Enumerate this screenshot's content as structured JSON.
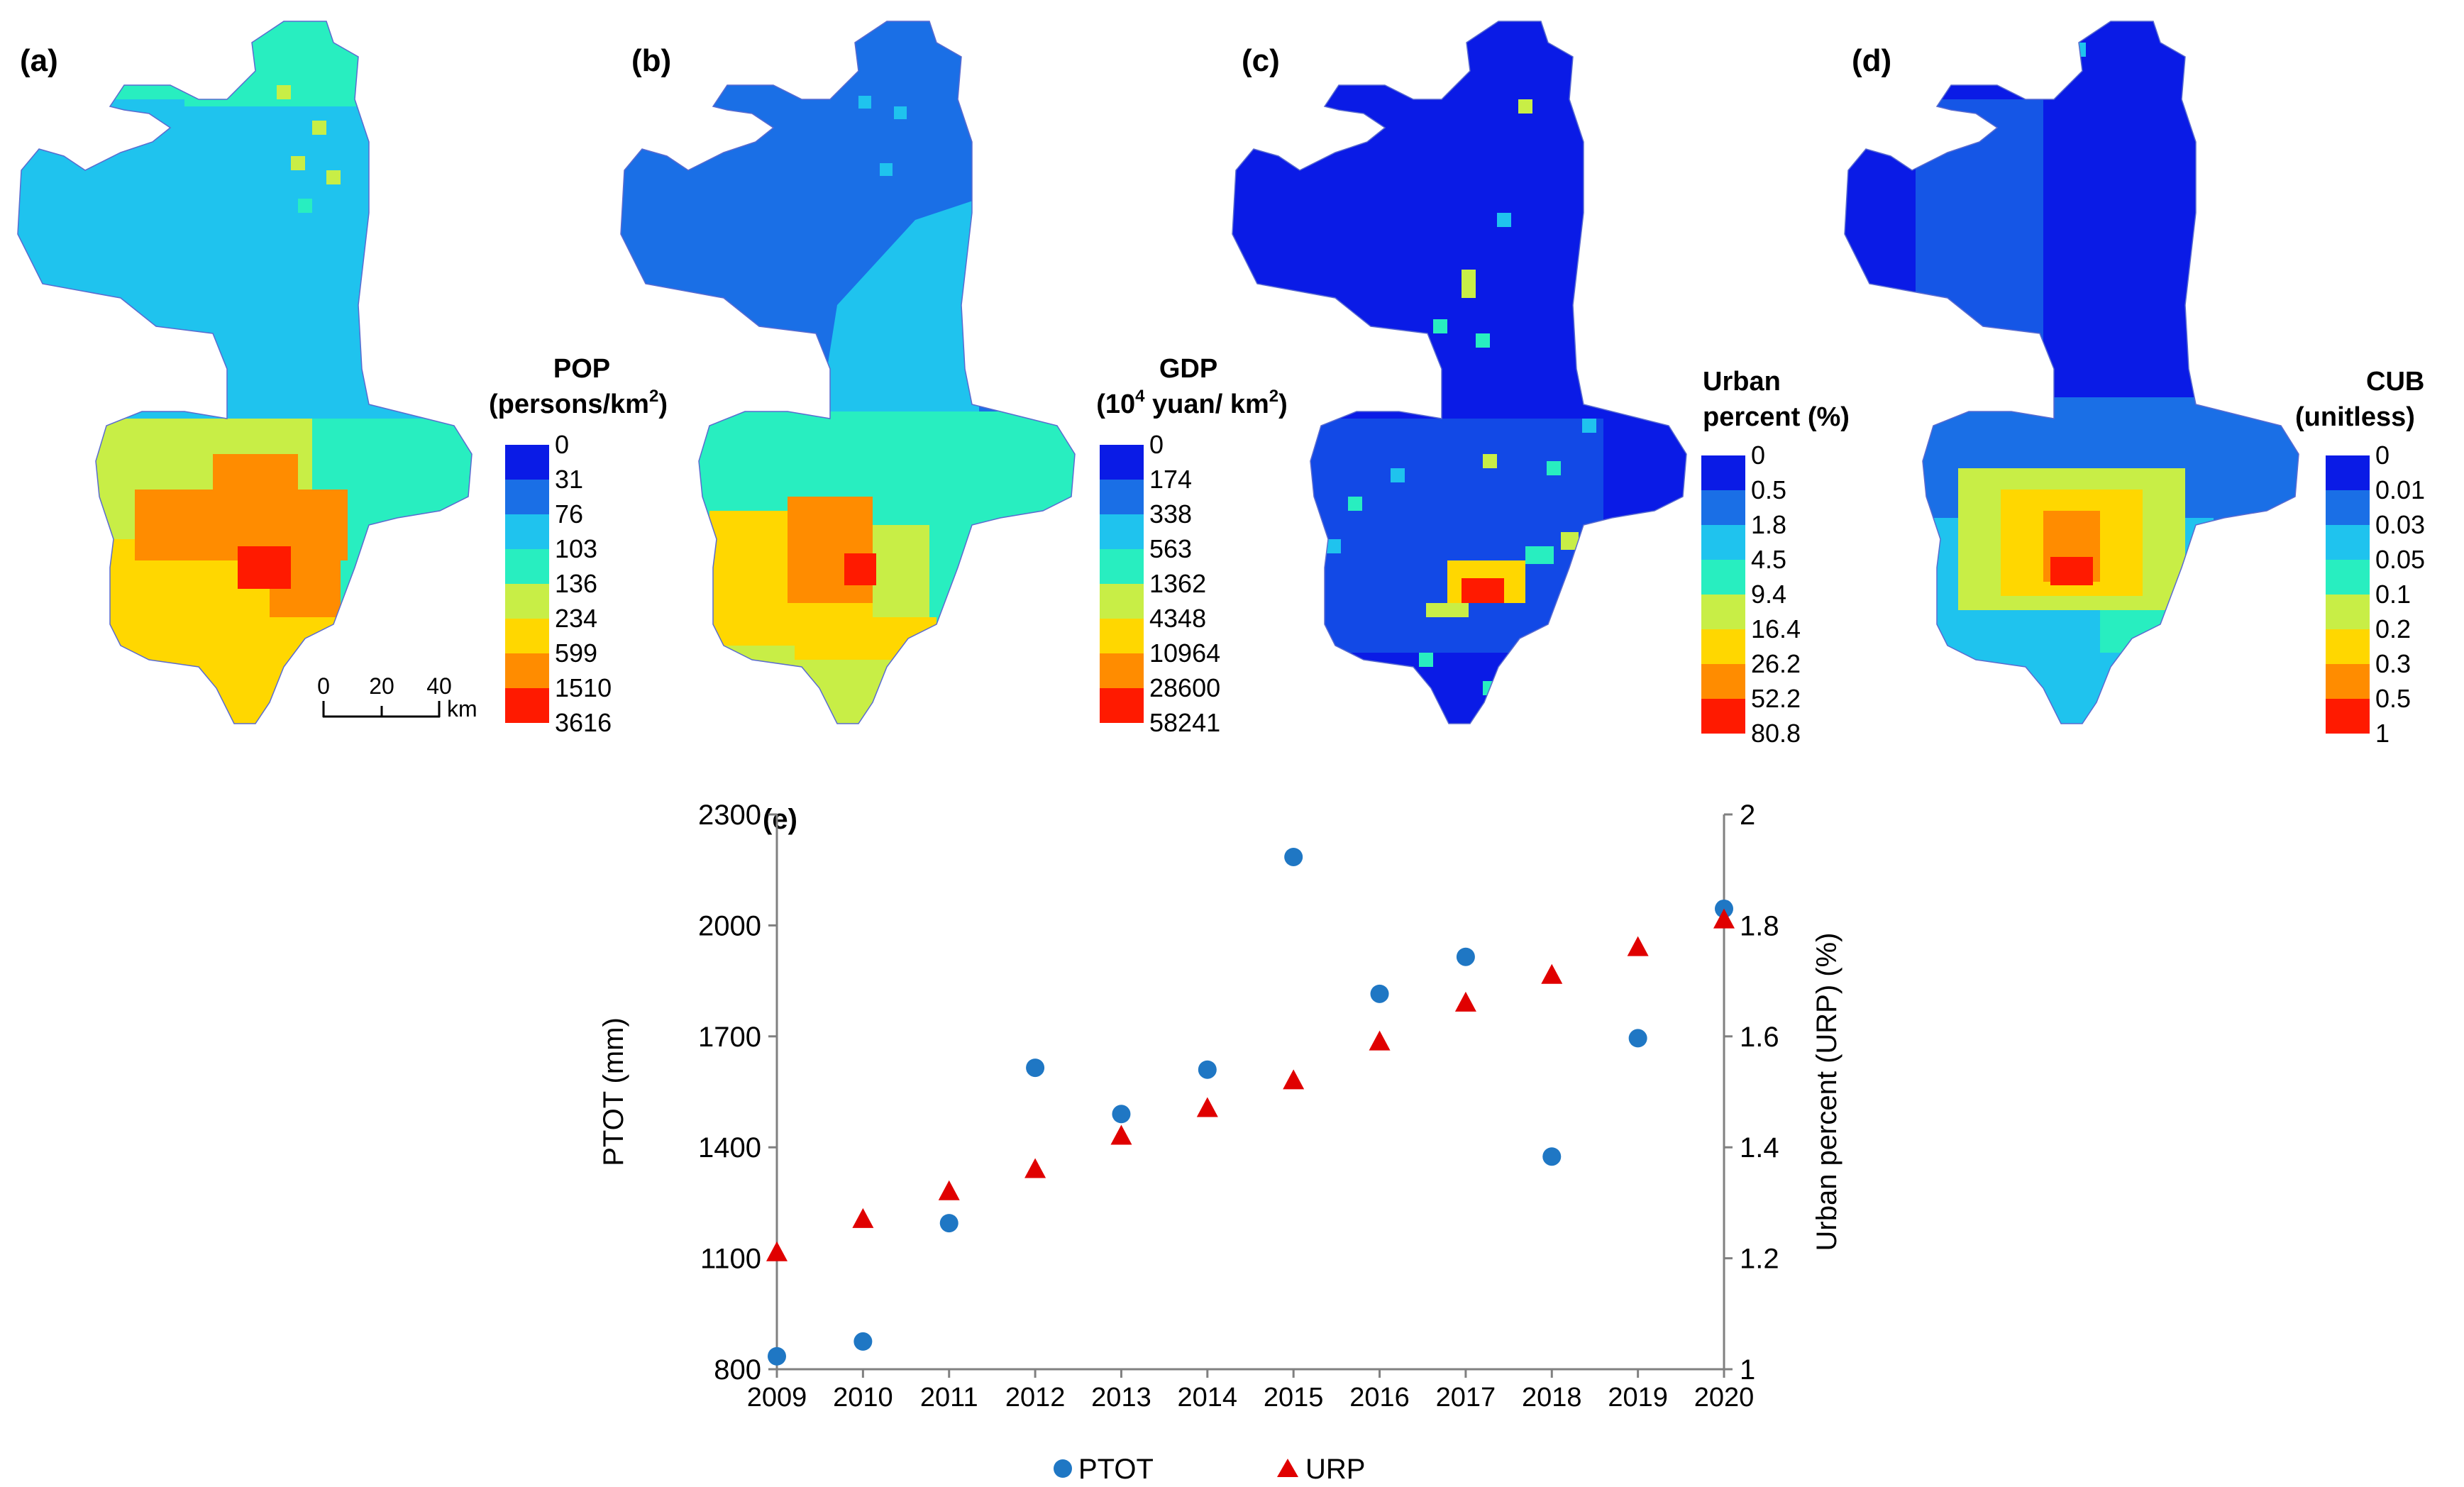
{
  "maps": [
    {
      "panel": "(a)",
      "legend_title": [
        "POP",
        "(persons/km",
        "2",
        ")"
      ],
      "breaks": [
        "0",
        "31",
        "76",
        "103",
        "136",
        "234",
        "599",
        "1510",
        "3616"
      ]
    },
    {
      "panel": "(b)",
      "legend_title": [
        "GDP",
        "(10",
        "4",
        " yuan/ km",
        "2",
        ")"
      ],
      "breaks": [
        "0",
        "174",
        "338",
        "563",
        "1362",
        "4348",
        "10964",
        "28600",
        "58241"
      ]
    },
    {
      "panel": "(c)",
      "legend_title": [
        "Urban",
        "percent (%)"
      ],
      "breaks": [
        "0",
        "0.5",
        "1.8",
        "4.5",
        "9.4",
        "16.4",
        "26.2",
        "52.2",
        "80.8"
      ]
    },
    {
      "panel": "(d)",
      "legend_title": [
        "CUB",
        "(unitless)"
      ],
      "breaks": [
        "0",
        "0.01",
        "0.03",
        "0.05",
        "0.1",
        "0.2",
        "0.3",
        "0.5",
        "1"
      ]
    }
  ],
  "legend_colors": [
    "#0a1be6",
    "#1a6fe6",
    "#1fc3ee",
    "#28eec0",
    "#c8ee46",
    "#ffd700",
    "#ff8c00",
    "#ff1a00"
  ],
  "scale_bar": {
    "ticks": [
      "0",
      "20",
      "40"
    ],
    "unit": "km"
  },
  "chart_data": {
    "type": "scatter",
    "panel": "(e)",
    "x": [
      2009,
      2010,
      2011,
      2012,
      2013,
      2014,
      2015,
      2016,
      2017,
      2018,
      2019,
      2020
    ],
    "series": [
      {
        "name": "PTOT",
        "axis": "left",
        "marker": "circle",
        "color": "#1f77c4",
        "values": [
          835,
          875,
          1195,
          1615,
          1490,
          1610,
          2185,
          1815,
          1915,
          1375,
          1695,
          2045
        ]
      },
      {
        "name": "URP",
        "axis": "right",
        "marker": "triangle",
        "color": "#e00000",
        "values": [
          1.21,
          1.27,
          1.32,
          1.36,
          1.42,
          1.47,
          1.52,
          1.59,
          1.66,
          1.71,
          1.76,
          1.81
        ]
      }
    ],
    "ylabel": "PTOT (mm)",
    "y2label": "Urban percent (URP) (%)",
    "ylim": [
      800,
      2300
    ],
    "yticks": [
      800,
      1100,
      1400,
      1700,
      2000,
      2300
    ],
    "y2lim": [
      1,
      2
    ],
    "y2ticks": [
      "1",
      "1.2",
      "1.4",
      "1.6",
      "1.8",
      "2"
    ],
    "legend": [
      "PTOT",
      "URP"
    ]
  }
}
